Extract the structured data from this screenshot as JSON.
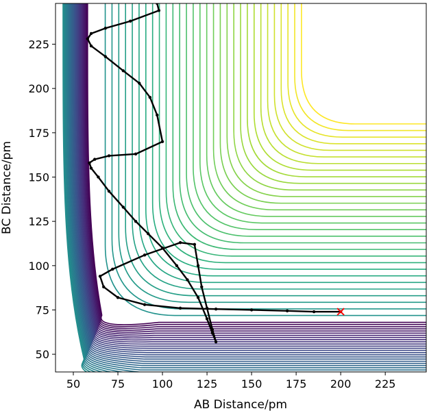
{
  "chart_data": {
    "type": "contour",
    "xlabel": "AB Distance/pm",
    "ylabel": "BC Distance/pm",
    "xlim": [
      40,
      248
    ],
    "ylim": [
      40,
      248
    ],
    "x_ticks": [
      50,
      75,
      100,
      125,
      150,
      175,
      200,
      225
    ],
    "y_ticks": [
      50,
      75,
      100,
      125,
      150,
      175,
      200,
      225
    ],
    "grid": false,
    "legend": "none",
    "contour_colormap": "viridis",
    "contour_level_count": 60,
    "contour_colors": [
      "#440154",
      "#472c7a",
      "#3b518b",
      "#2c718e",
      "#21908d",
      "#27ad81",
      "#5cc863",
      "#aadc32",
      "#fde725"
    ],
    "trajectory_color": "#000000",
    "trajectory": {
      "x": [
        200,
        185,
        170,
        150,
        130,
        110,
        90,
        75,
        67,
        65,
        72,
        90,
        110,
        118,
        120,
        122,
        125,
        128,
        130,
        128,
        125,
        120,
        114,
        108,
        100,
        92,
        85,
        78,
        70,
        64,
        60,
        59,
        62,
        70,
        85,
        100,
        97,
        93,
        87,
        78,
        68,
        60,
        58,
        60,
        68,
        82,
        98,
        97,
        96
      ],
      "y": [
        74,
        74,
        74.5,
        75,
        75.5,
        76,
        78,
        82,
        88,
        94,
        98,
        106,
        113,
        112,
        100,
        88,
        76,
        64,
        57,
        62,
        70,
        82,
        92,
        100,
        110,
        118,
        125,
        133,
        142,
        150,
        155,
        158,
        160,
        162,
        163,
        170,
        185,
        195,
        203,
        210,
        218,
        224,
        228,
        231,
        234,
        238,
        244,
        248,
        250
      ]
    },
    "end_marker": {
      "x": 200,
      "y": 74,
      "symbol": "x",
      "color": "#ff0000"
    }
  }
}
